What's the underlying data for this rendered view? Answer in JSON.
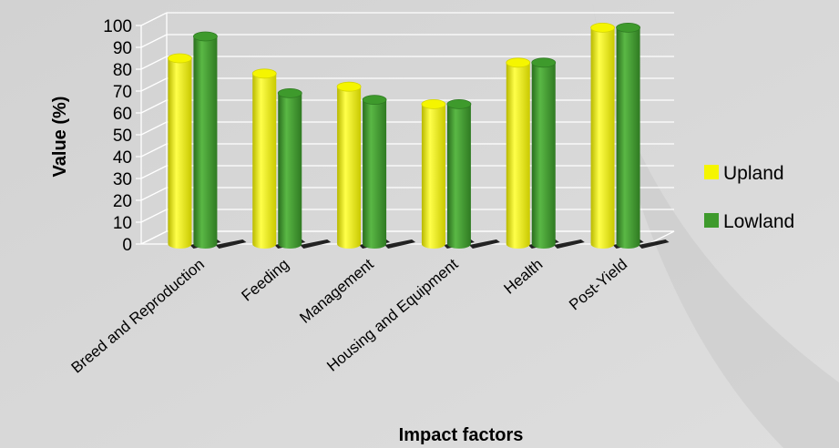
{
  "chart_data": {
    "type": "bar",
    "categories": [
      "Breed and Reproduction",
      "Feeding",
      "Management",
      "Housing and Equipment",
      "Health",
      "Post-Yield"
    ],
    "series": [
      {
        "name": "Upland",
        "values": [
          85,
          78,
          72,
          64,
          83,
          99
        ],
        "color": "#f5f500"
      },
      {
        "name": "Lowland",
        "values": [
          95,
          69,
          66,
          64,
          83,
          99
        ],
        "color": "#3e9a2c"
      }
    ],
    "xlabel": "Impact factors",
    "ylabel": "Value (%)",
    "ylim": [
      0,
      100
    ],
    "ytick_step": 10,
    "grid": true,
    "legend_position": "right",
    "style": "3d-cylinder"
  }
}
